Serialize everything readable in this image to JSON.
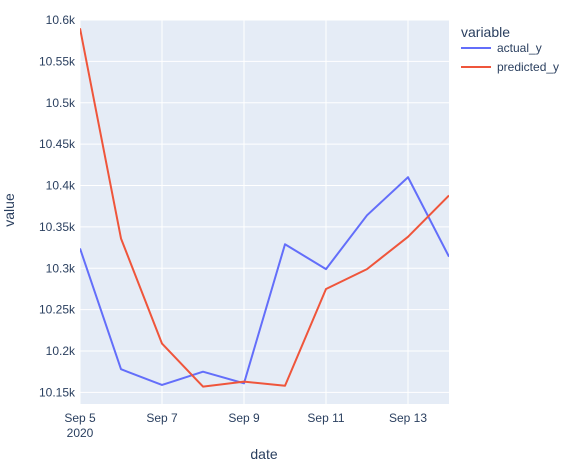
{
  "chart_data": {
    "type": "line",
    "xlabel": "date",
    "ylabel": "value",
    "x": [
      "2020-09-05",
      "2020-09-06",
      "2020-09-07",
      "2020-09-08",
      "2020-09-09",
      "2020-09-10",
      "2020-09-11",
      "2020-09-12",
      "2020-09-13",
      "2020-09-14"
    ],
    "xlim": [
      "2020-09-05",
      "2020-09-14"
    ],
    "ylim": [
      10136,
      10600
    ],
    "x_ticks": [
      {
        "x": "2020-09-05",
        "label": "Sep 5",
        "sublabel": "2020"
      },
      {
        "x": "2020-09-07",
        "label": "Sep 7"
      },
      {
        "x": "2020-09-09",
        "label": "Sep 9"
      },
      {
        "x": "2020-09-11",
        "label": "Sep 11"
      },
      {
        "x": "2020-09-13",
        "label": "Sep 13"
      }
    ],
    "y_ticks": [
      {
        "y": 10150,
        "label": "10.15k"
      },
      {
        "y": 10200,
        "label": "10.2k"
      },
      {
        "y": 10250,
        "label": "10.25k"
      },
      {
        "y": 10300,
        "label": "10.3k"
      },
      {
        "y": 10350,
        "label": "10.35k"
      },
      {
        "y": 10400,
        "label": "10.4k"
      },
      {
        "y": 10450,
        "label": "10.45k"
      },
      {
        "y": 10500,
        "label": "10.5k"
      },
      {
        "y": 10550,
        "label": "10.55k"
      },
      {
        "y": 10600,
        "label": "10.6k"
      }
    ],
    "legend": {
      "title": "variable",
      "position": "right"
    },
    "grid": true,
    "series": [
      {
        "name": "actual_y",
        "color": "#636efa",
        "values": [
          10324,
          10178,
          10159,
          10175,
          10161,
          10329,
          10299,
          10364,
          10410,
          10314
        ]
      },
      {
        "name": "predicted_y",
        "color": "#ef553b",
        "values": [
          10590,
          10336,
          10209,
          10157,
          10163,
          10158,
          10275,
          10299,
          10338,
          10388
        ]
      }
    ]
  },
  "colors": {
    "plot_background": "#e5ecf6",
    "grid": "#ffffff",
    "text": "#2a3f5f"
  }
}
